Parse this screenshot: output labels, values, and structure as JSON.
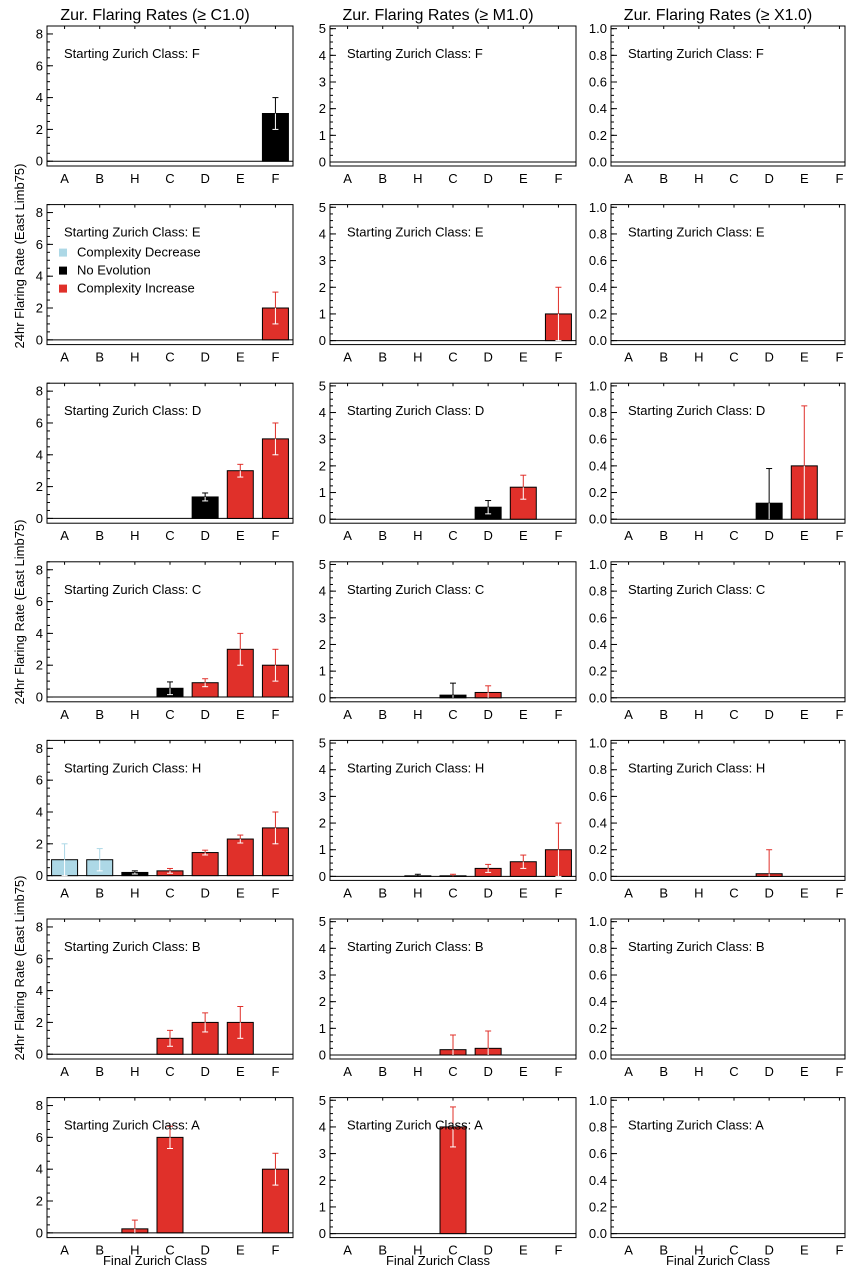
{
  "figure": {
    "column_titles": [
      "Zur. Flaring Rates (≥ C1.0)",
      "Zur. Flaring Rates (≥ M1.0)",
      "Zur. Flaring Rates (≥ X1.0)"
    ],
    "ylabel": "24hr Flaring Rate (East Limb75)",
    "xlabel": "Final Zurich Class",
    "panel_label_prefix": "Starting Zurich Class: ",
    "legend": [
      {
        "label": "Complexity Decrease",
        "color": "#add8e6"
      },
      {
        "label": "No Evolution",
        "color": "#000000"
      },
      {
        "label": "Complexity Increase",
        "color": "#e0302a"
      }
    ]
  },
  "chart_data": {
    "type": "bar",
    "categories": [
      "A",
      "B",
      "H",
      "C",
      "D",
      "E",
      "F"
    ],
    "rows": [
      "F",
      "E",
      "D",
      "C",
      "H",
      "B",
      "A"
    ],
    "colors": {
      "decrease": "#add8e6",
      "none": "#000000",
      "increase": "#e0302a"
    },
    "columns": [
      {
        "title": "Zur. Flaring Rates (≥ C1.0)",
        "ylim": [
          -0.3,
          8.5
        ],
        "yticks": [
          0,
          2,
          4,
          6,
          8
        ],
        "tick_format": "int",
        "minor_step": 0.5,
        "panels": [
          {
            "start": "F",
            "bars": [
              {
                "cat": "F",
                "value": 3.0,
                "err": 1.0,
                "kind": "none"
              }
            ]
          },
          {
            "start": "E",
            "legend": true,
            "bars": [
              {
                "cat": "F",
                "value": 2.0,
                "err": 1.0,
                "kind": "increase"
              }
            ]
          },
          {
            "start": "D",
            "bars": [
              {
                "cat": "D",
                "value": 1.35,
                "err": 0.25,
                "kind": "none"
              },
              {
                "cat": "E",
                "value": 3.0,
                "err": 0.4,
                "kind": "increase"
              },
              {
                "cat": "F",
                "value": 5.0,
                "err": 1.0,
                "kind": "increase"
              }
            ]
          },
          {
            "start": "C",
            "bars": [
              {
                "cat": "C",
                "value": 0.55,
                "err": 0.4,
                "kind": "none"
              },
              {
                "cat": "D",
                "value": 0.9,
                "err": 0.25,
                "kind": "increase"
              },
              {
                "cat": "E",
                "value": 3.0,
                "err": 1.0,
                "kind": "increase"
              },
              {
                "cat": "F",
                "value": 2.0,
                "err": 1.0,
                "kind": "increase"
              }
            ]
          },
          {
            "start": "H",
            "bars": [
              {
                "cat": "A",
                "value": 1.0,
                "err": 1.0,
                "kind": "decrease"
              },
              {
                "cat": "B",
                "value": 1.0,
                "err": 0.7,
                "kind": "decrease"
              },
              {
                "cat": "H",
                "value": 0.2,
                "err": 0.1,
                "kind": "none"
              },
              {
                "cat": "C",
                "value": 0.3,
                "err": 0.15,
                "kind": "increase"
              },
              {
                "cat": "D",
                "value": 1.45,
                "err": 0.15,
                "kind": "increase"
              },
              {
                "cat": "E",
                "value": 2.3,
                "err": 0.25,
                "kind": "increase"
              },
              {
                "cat": "F",
                "value": 3.0,
                "err": 1.0,
                "kind": "increase"
              }
            ]
          },
          {
            "start": "B",
            "bars": [
              {
                "cat": "C",
                "value": 1.0,
                "err": 0.5,
                "kind": "increase"
              },
              {
                "cat": "D",
                "value": 2.0,
                "err": 0.6,
                "kind": "increase"
              },
              {
                "cat": "E",
                "value": 2.0,
                "err": 1.0,
                "kind": "increase"
              }
            ]
          },
          {
            "start": "A",
            "bars": [
              {
                "cat": "H",
                "value": 0.25,
                "err": 0.55,
                "kind": "increase"
              },
              {
                "cat": "C",
                "value": 6.0,
                "err": 0.7,
                "kind": "increase"
              },
              {
                "cat": "F",
                "value": 4.0,
                "err": 1.0,
                "kind": "increase"
              }
            ]
          }
        ]
      },
      {
        "title": "Zur. Flaring Rates (≥ M1.0)",
        "ylim": [
          -0.15,
          5.1
        ],
        "yticks": [
          0,
          1,
          2,
          3,
          4,
          5
        ],
        "tick_format": "int",
        "minor_step": 0.25,
        "panels": [
          {
            "start": "F",
            "bars": []
          },
          {
            "start": "E",
            "bars": [
              {
                "cat": "F",
                "value": 1.0,
                "err": 1.0,
                "kind": "increase"
              }
            ]
          },
          {
            "start": "D",
            "bars": [
              {
                "cat": "D",
                "value": 0.45,
                "err": 0.25,
                "kind": "none"
              },
              {
                "cat": "E",
                "value": 1.2,
                "err": 0.45,
                "kind": "increase"
              }
            ]
          },
          {
            "start": "C",
            "bars": [
              {
                "cat": "C",
                "value": 0.1,
                "err": 0.45,
                "kind": "none"
              },
              {
                "cat": "D",
                "value": 0.2,
                "err": 0.25,
                "kind": "increase"
              }
            ]
          },
          {
            "start": "H",
            "bars": [
              {
                "cat": "H",
                "value": 0.0,
                "err": 0.08,
                "kind": "none"
              },
              {
                "cat": "C",
                "value": 0.0,
                "err": 0.08,
                "kind": "increase"
              },
              {
                "cat": "D",
                "value": 0.3,
                "err": 0.15,
                "kind": "increase"
              },
              {
                "cat": "E",
                "value": 0.55,
                "err": 0.25,
                "kind": "increase"
              },
              {
                "cat": "F",
                "value": 1.0,
                "err": 1.0,
                "kind": "increase"
              }
            ]
          },
          {
            "start": "B",
            "bars": [
              {
                "cat": "C",
                "value": 0.2,
                "err": 0.55,
                "kind": "increase"
              },
              {
                "cat": "D",
                "value": 0.25,
                "err": 0.65,
                "kind": "increase"
              }
            ]
          },
          {
            "start": "A",
            "bars": [
              {
                "cat": "C",
                "value": 4.0,
                "err": 0.75,
                "kind": "increase"
              }
            ]
          }
        ]
      },
      {
        "title": "Zur. Flaring Rates (≥ X1.0)",
        "ylim": [
          -0.03,
          1.02
        ],
        "yticks": [
          0.0,
          0.2,
          0.4,
          0.6,
          0.8,
          1.0
        ],
        "tick_format": "one_decimal",
        "minor_step": 0.05,
        "panels": [
          {
            "start": "F",
            "bars": []
          },
          {
            "start": "E",
            "bars": []
          },
          {
            "start": "D",
            "bars": [
              {
                "cat": "D",
                "value": 0.12,
                "err": 0.26,
                "kind": "none"
              },
              {
                "cat": "E",
                "value": 0.4,
                "err": 0.45,
                "kind": "increase"
              }
            ]
          },
          {
            "start": "C",
            "bars": []
          },
          {
            "start": "H",
            "bars": [
              {
                "cat": "D",
                "value": 0.02,
                "err": 0.18,
                "kind": "increase"
              }
            ]
          },
          {
            "start": "B",
            "bars": []
          },
          {
            "start": "A",
            "bars": []
          }
        ]
      }
    ]
  }
}
